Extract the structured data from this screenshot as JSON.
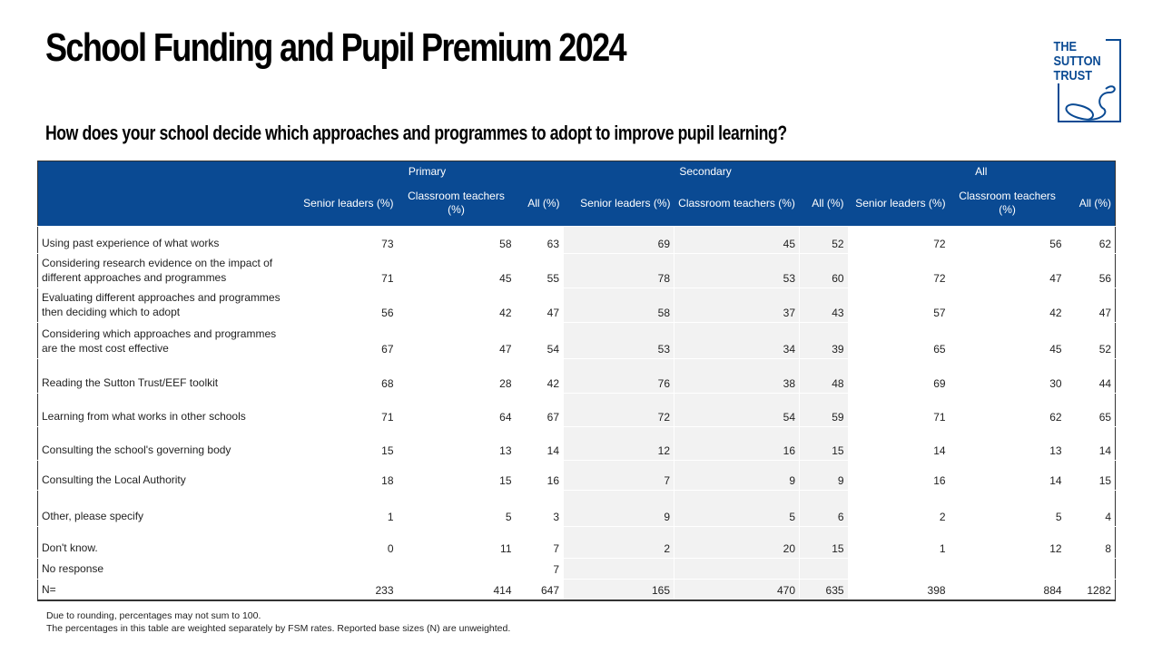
{
  "title": "School Funding and Pupil Premium 2024",
  "subtitle": "How does your school decide which approaches and programmes to adopt to improve pupil learning?",
  "logo": {
    "text": "THE SUTTON TRUST",
    "color": "#0a4a93"
  },
  "header_color": "#0a4a93",
  "table": {
    "groups": [
      "Primary",
      "Secondary",
      "All"
    ],
    "columns": [
      "Senior leaders (%)",
      "Classroom teachers (%)",
      "All (%)",
      "Senior leaders (%)",
      "Classroom teachers (%)",
      "All (%)",
      "Senior leaders (%)",
      "Classroom teachers (%)",
      "All (%)"
    ],
    "rows": [
      {
        "label": "Using past experience of what works",
        "values": [
          "73",
          "58",
          "63",
          "69",
          "45",
          "52",
          "72",
          "56",
          "62"
        ]
      },
      {
        "label": "Considering research evidence on the impact of different approaches and programmes",
        "values": [
          "71",
          "45",
          "55",
          "78",
          "53",
          "60",
          "72",
          "47",
          "56"
        ]
      },
      {
        "label": "Evaluating different approaches and programmes then deciding which to adopt",
        "values": [
          "56",
          "42",
          "47",
          "58",
          "37",
          "43",
          "57",
          "42",
          "47"
        ]
      },
      {
        "label": "Considering which approaches and programmes are the most cost effective",
        "values": [
          "67",
          "47",
          "54",
          "53",
          "34",
          "39",
          "65",
          "45",
          "52"
        ]
      },
      {
        "label": "Reading the Sutton Trust/EEF toolkit",
        "values": [
          "68",
          "28",
          "42",
          "76",
          "38",
          "48",
          "69",
          "30",
          "44"
        ]
      },
      {
        "label": "Learning from what works in other schools",
        "values": [
          "71",
          "64",
          "67",
          "72",
          "54",
          "59",
          "71",
          "62",
          "65"
        ]
      },
      {
        "label": "Consulting the school's governing body",
        "values": [
          "15",
          "13",
          "14",
          "12",
          "16",
          "15",
          "14",
          "13",
          "14"
        ]
      },
      {
        "label": "Consulting the Local Authority",
        "values": [
          "18",
          "15",
          "16",
          "7",
          "9",
          "9",
          "16",
          "14",
          "15"
        ]
      },
      {
        "label": "Other, please specify",
        "values": [
          "1",
          "5",
          "3",
          "9",
          "5",
          "6",
          "2",
          "5",
          "4"
        ]
      },
      {
        "label": "Don't know.",
        "values": [
          "0",
          "11",
          "7",
          "2",
          "20",
          "15",
          "1",
          "12",
          "8"
        ]
      },
      {
        "label": "No response",
        "values": [
          "",
          "",
          "7",
          "",
          "",
          "",
          "",
          "",
          ""
        ]
      },
      {
        "label": "N=",
        "values": [
          "233",
          "414",
          "647",
          "165",
          "470",
          "635",
          "398",
          "884",
          "1282"
        ]
      }
    ]
  },
  "notes": [
    "Due to rounding, percentages may not sum to 100.",
    "The percentages in this table are weighted separately by FSM rates. Reported base sizes (N) are unweighted."
  ]
}
